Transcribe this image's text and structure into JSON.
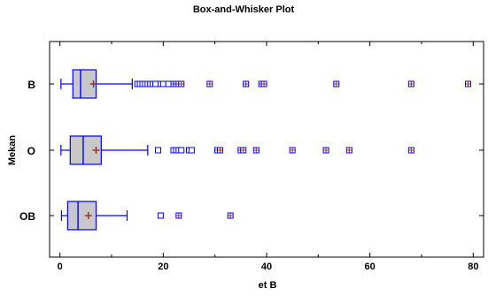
{
  "chart_data": {
    "type": "boxplot",
    "title": "Box-and-Whisker Plot",
    "xlabel": "et B",
    "ylabel": "Mekan",
    "xlim": [
      -2,
      82
    ],
    "xticks": [
      0,
      20,
      40,
      60,
      80
    ],
    "xtick_labels": [
      "0",
      "20",
      "40",
      "60",
      "80"
    ],
    "grid": false,
    "categories": [
      "B",
      "O",
      "OB"
    ],
    "series": [
      {
        "category": "B",
        "whisker_low": 0.2,
        "q1": 2.5,
        "median": 4.0,
        "q3": 7.0,
        "whisker_high": 14.0,
        "mean": 6.5,
        "outliers": [
          15.0,
          15.5,
          16.0,
          16.5,
          17.0,
          17.5,
          18.0,
          18.5,
          19.5,
          20.0,
          21.0,
          22.0,
          22.5,
          23.0,
          23.5,
          29.0,
          36.0,
          39.0,
          39.5,
          53.5,
          68.0,
          79.0
        ],
        "far_outliers": [
          22.0,
          22.5,
          23.0,
          23.5,
          29.0,
          36.0,
          39.0,
          39.5,
          53.5,
          68.0,
          79.0
        ]
      },
      {
        "category": "O",
        "whisker_low": 0.2,
        "q1": 2.0,
        "median": 4.5,
        "q3": 8.0,
        "whisker_high": 17.0,
        "mean": 7.0,
        "outliers": [
          19.0,
          22.0,
          22.5,
          23.0,
          23.5,
          25.0,
          25.5,
          30.5,
          31.0,
          35.0,
          35.5,
          38.0,
          45.0,
          51.5,
          56.0,
          68.0
        ],
        "far_outliers": [
          30.5,
          31.0,
          35.0,
          35.5,
          38.0,
          45.0,
          51.5,
          56.0,
          68.0
        ]
      },
      {
        "category": "OB",
        "whisker_low": 0.3,
        "q1": 1.5,
        "median": 3.5,
        "q3": 7.0,
        "whisker_high": 13.0,
        "mean": 5.5,
        "outliers": [
          19.5,
          23.0,
          33.0
        ],
        "far_outliers": [
          23.0,
          33.0
        ]
      }
    ],
    "colors": {
      "box_fill": "#c8c8c8",
      "box_stroke": "#0000ff",
      "outlier_stroke": "#0000ff",
      "mean_marker": "#a52a2a",
      "far_outlier_inner": "#a52a2a"
    }
  }
}
